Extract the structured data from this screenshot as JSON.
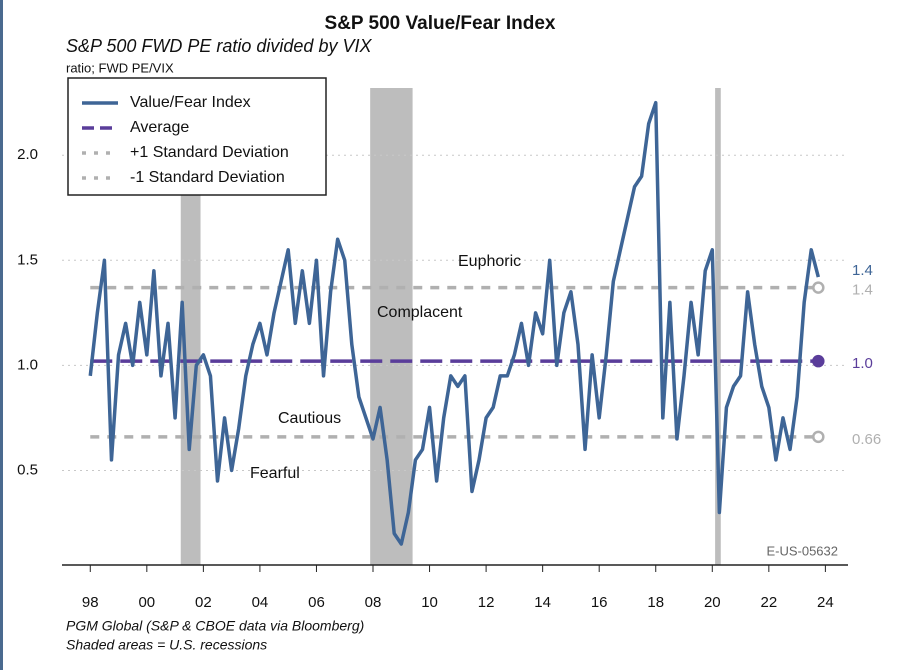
{
  "chart_data": {
    "type": "line",
    "title": "S&P 500 Value/Fear Index",
    "subtitle": "S&P 500 FWD PE ratio divided by VIX",
    "y_label": "ratio; FWD PE/VIX",
    "source": "PGM Global (S&P & CBOE data via Bloomberg)",
    "note": "Shaded areas = U.S. recessions",
    "code": "E-US-05632",
    "xlim": [
      1997.0,
      2024.8
    ],
    "ylim": [
      0.05,
      2.32
    ],
    "xticks": [
      {
        "value": 1998,
        "label": "98"
      },
      {
        "value": 2000,
        "label": "00"
      },
      {
        "value": 2002,
        "label": "02"
      },
      {
        "value": 2004,
        "label": "04"
      },
      {
        "value": 2006,
        "label": "06"
      },
      {
        "value": 2008,
        "label": "08"
      },
      {
        "value": 2010,
        "label": "10"
      },
      {
        "value": 2012,
        "label": "12"
      },
      {
        "value": 2014,
        "label": "14"
      },
      {
        "value": 2016,
        "label": "16"
      },
      {
        "value": 2018,
        "label": "18"
      },
      {
        "value": 2020,
        "label": "20"
      },
      {
        "value": 2022,
        "label": "22"
      },
      {
        "value": 2024,
        "label": "24"
      }
    ],
    "yticks": [
      {
        "value": 0.5,
        "label": "0.5"
      },
      {
        "value": 1.0,
        "label": "1.0"
      },
      {
        "value": 1.5,
        "label": "1.5"
      },
      {
        "value": 2.0,
        "label": "2.0"
      }
    ],
    "grid": true,
    "recessions": [
      [
        2001.2,
        2001.9
      ],
      [
        2007.9,
        2009.4
      ],
      [
        2020.1,
        2020.3
      ]
    ],
    "recession_color": "#bdbdbd",
    "annotations": [
      "Euphoric",
      "Complacent",
      "Cautious",
      "Fearful"
    ],
    "series": [
      {
        "name": "Value/Fear Index",
        "color": "#3e6596",
        "end_label": "1.4",
        "x": [
          1998.0,
          1998.25,
          1998.5,
          1998.75,
          1999.0,
          1999.25,
          1999.5,
          1999.75,
          2000.0,
          2000.25,
          2000.5,
          2000.75,
          2001.0,
          2001.25,
          2001.5,
          2001.75,
          2002.0,
          2002.25,
          2002.5,
          2002.75,
          2003.0,
          2003.25,
          2003.5,
          2003.75,
          2004.0,
          2004.25,
          2004.5,
          2004.75,
          2005.0,
          2005.25,
          2005.5,
          2005.75,
          2006.0,
          2006.25,
          2006.5,
          2006.75,
          2007.0,
          2007.25,
          2007.5,
          2007.75,
          2008.0,
          2008.25,
          2008.5,
          2008.75,
          2009.0,
          2009.25,
          2009.5,
          2009.75,
          2010.0,
          2010.25,
          2010.5,
          2010.75,
          2011.0,
          2011.25,
          2011.5,
          2011.75,
          2012.0,
          2012.25,
          2012.5,
          2012.75,
          2013.0,
          2013.25,
          2013.5,
          2013.75,
          2014.0,
          2014.25,
          2014.5,
          2014.75,
          2015.0,
          2015.25,
          2015.5,
          2015.75,
          2016.0,
          2016.25,
          2016.5,
          2016.75,
          2017.0,
          2017.25,
          2017.5,
          2017.75,
          2018.0,
          2018.25,
          2018.5,
          2018.75,
          2019.0,
          2019.25,
          2019.5,
          2019.75,
          2020.0,
          2020.25,
          2020.5,
          2020.75,
          2021.0,
          2021.25,
          2021.5,
          2021.75,
          2022.0,
          2022.25,
          2022.5,
          2022.75,
          2023.0,
          2023.25,
          2023.5,
          2023.75
        ],
        "values": [
          0.95,
          1.25,
          1.5,
          0.55,
          1.05,
          1.2,
          1.0,
          1.3,
          1.05,
          1.45,
          0.95,
          1.2,
          0.75,
          1.3,
          0.6,
          1.0,
          1.05,
          0.95,
          0.45,
          0.75,
          0.5,
          0.7,
          0.95,
          1.1,
          1.2,
          1.05,
          1.25,
          1.4,
          1.55,
          1.2,
          1.45,
          1.2,
          1.5,
          0.95,
          1.35,
          1.6,
          1.5,
          1.1,
          0.85,
          0.75,
          0.65,
          0.8,
          0.55,
          0.2,
          0.15,
          0.3,
          0.55,
          0.6,
          0.8,
          0.45,
          0.75,
          0.95,
          0.9,
          0.95,
          0.4,
          0.55,
          0.75,
          0.8,
          0.95,
          0.95,
          1.05,
          1.2,
          1.0,
          1.25,
          1.15,
          1.5,
          1.0,
          1.25,
          1.35,
          1.1,
          0.6,
          1.05,
          0.75,
          1.05,
          1.4,
          1.55,
          1.7,
          1.85,
          1.9,
          2.15,
          2.25,
          0.75,
          1.3,
          0.65,
          0.95,
          1.3,
          1.05,
          1.45,
          1.55,
          0.3,
          0.8,
          0.9,
          0.95,
          1.35,
          1.1,
          0.9,
          0.8,
          0.55,
          0.75,
          0.6,
          0.85,
          1.3,
          1.55,
          1.42
        ]
      }
    ],
    "reference_lines": [
      {
        "name": "Average",
        "value": 1.02,
        "label": "1.0",
        "color": "#5a3d9a",
        "style": "dashed"
      },
      {
        "name": "+1 Standard Deviation",
        "value": 1.37,
        "label": "1.4",
        "color": "#b0b0b0",
        "style": "dotted"
      },
      {
        "name": "-1 Standard Deviation",
        "value": 0.66,
        "label": "0.66",
        "color": "#b0b0b0",
        "style": "dotted"
      }
    ]
  }
}
